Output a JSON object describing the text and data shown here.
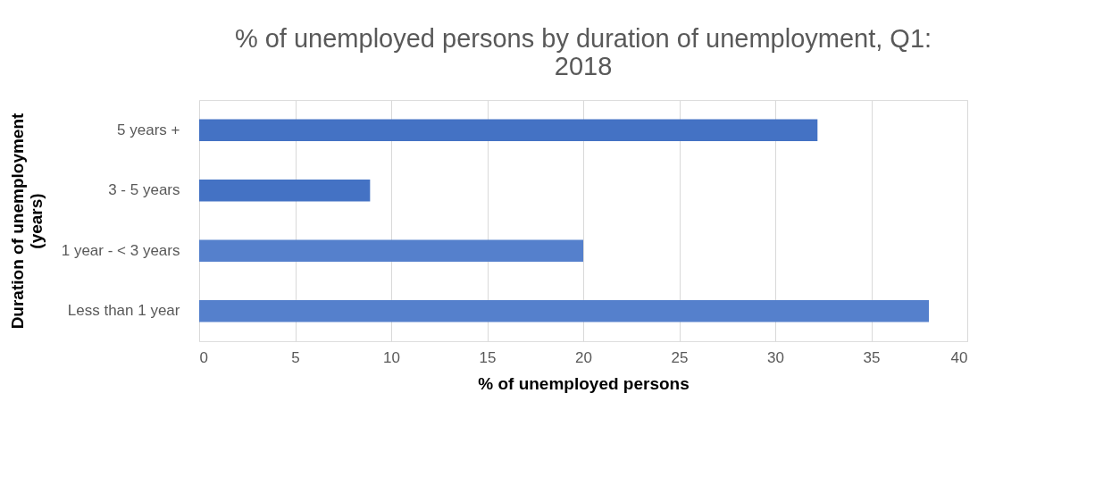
{
  "chart_data": {
    "type": "bar",
    "orientation": "horizontal",
    "title": "% of unemployed persons by duration of unemployment, Q1: 2018",
    "xlabel": "% of unemployed persons",
    "ylabel": "Duration of unemployment (years)",
    "categories": [
      "5 years +",
      "3 - 5 years",
      "1 year - < 3 years",
      "Less than 1 year"
    ],
    "values": [
      32.2,
      8.9,
      20.0,
      38.0
    ],
    "colors": [
      "#4472c4",
      "#4472c4",
      "#5580cc",
      "#5580cc"
    ],
    "xlim": [
      0,
      40
    ],
    "xticks": [
      0,
      5,
      10,
      15,
      20,
      25,
      30,
      35,
      40
    ],
    "grid": "x"
  }
}
